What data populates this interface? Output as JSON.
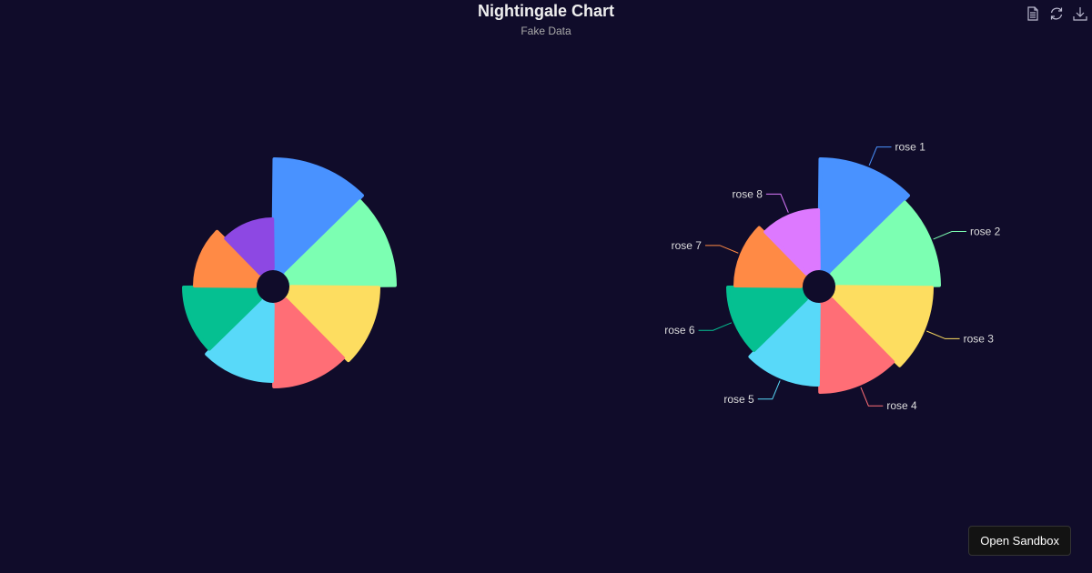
{
  "title": "Nightingale Chart",
  "subtitle": "Fake Data",
  "toolbox": {
    "icons": [
      "data-view-icon",
      "restore-icon",
      "save-image-icon"
    ]
  },
  "sandbox_button": "Open Sandbox",
  "chart_data": [
    {
      "type": "pie",
      "rose_type": "radius",
      "show_labels": false,
      "categories": [
        "rose 1",
        "rose 2",
        "rose 3",
        "rose 4",
        "rose 5",
        "rose 6",
        "rose 7",
        "rose 8"
      ],
      "values": [
        40,
        38,
        32,
        30,
        28,
        26,
        22,
        18
      ],
      "colors": [
        "#4992ff",
        "#7cffb2",
        "#fddd60",
        "#ff6e76",
        "#58d9f9",
        "#05c091",
        "#ff8a45",
        "#8d48e3"
      ]
    },
    {
      "type": "pie",
      "rose_type": "area",
      "show_labels": true,
      "categories": [
        "rose 1",
        "rose 2",
        "rose 3",
        "rose 4",
        "rose 5",
        "rose 6",
        "rose 7",
        "rose 8"
      ],
      "values": [
        30,
        28,
        26,
        24,
        22,
        20,
        18,
        16
      ],
      "colors": [
        "#4992ff",
        "#7cffb2",
        "#fddd60",
        "#ff6e76",
        "#58d9f9",
        "#05c091",
        "#ff8a45",
        "#dd79ff"
      ]
    }
  ]
}
